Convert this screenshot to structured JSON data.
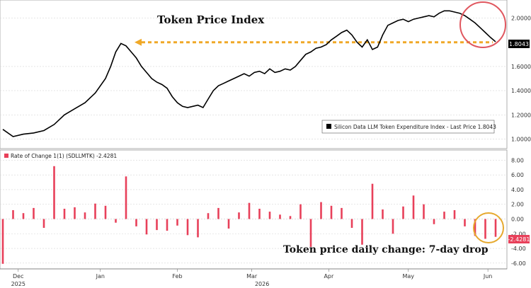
{
  "chart_data": [
    {
      "type": "line",
      "panel": "top",
      "title": "Token Price Index",
      "legend": "Silicon Data LLM Token Expenditure Index - Last Price 1.8043",
      "legend_position": "bottom-right",
      "last_price_label": "1.8043",
      "ylim": [
        0.95,
        2.12
      ],
      "y_ticks": [
        "1.0000",
        "1.2000",
        "1.4000",
        "1.6000",
        "2.0000"
      ],
      "y_tick_values": [
        1.0,
        1.2,
        1.4,
        1.6,
        2.0
      ],
      "reference_level": 1.8,
      "grid": true,
      "x_months": [
        "Dec",
        "Jan",
        "Feb",
        "Mar",
        "Apr",
        "May",
        "Jun"
      ],
      "x_years": [
        "2025",
        "2026"
      ],
      "x_note": "x = day index starting 0 at start of series (~late Nov 2025)",
      "series": [
        {
          "color": "#000000",
          "x": [
            0,
            4,
            8,
            12,
            16,
            20,
            24,
            28,
            32,
            36,
            40,
            42,
            44,
            46,
            48,
            50,
            52,
            54,
            56,
            58,
            60,
            62,
            64,
            66,
            68,
            70,
            72,
            74,
            76,
            78,
            80,
            82,
            84,
            86,
            88,
            90,
            92,
            94,
            96,
            98,
            100,
            102,
            104,
            106,
            108,
            110,
            112,
            114,
            116,
            118,
            120,
            122,
            124,
            126,
            128,
            130,
            132,
            134,
            136,
            138,
            140,
            142,
            144,
            146,
            148,
            150,
            152,
            154,
            156,
            158,
            160,
            162,
            164,
            166,
            168,
            170,
            172,
            174,
            176,
            178,
            180,
            182,
            184,
            186,
            188,
            190,
            192
          ],
          "values": [
            1.08,
            1.02,
            1.04,
            1.05,
            1.07,
            1.12,
            1.2,
            1.25,
            1.3,
            1.38,
            1.5,
            1.6,
            1.72,
            1.79,
            1.77,
            1.72,
            1.67,
            1.6,
            1.55,
            1.5,
            1.47,
            1.45,
            1.42,
            1.35,
            1.3,
            1.27,
            1.26,
            1.27,
            1.28,
            1.26,
            1.33,
            1.4,
            1.44,
            1.46,
            1.48,
            1.5,
            1.52,
            1.54,
            1.52,
            1.55,
            1.56,
            1.54,
            1.58,
            1.55,
            1.56,
            1.58,
            1.57,
            1.6,
            1.65,
            1.7,
            1.72,
            1.75,
            1.76,
            1.78,
            1.82,
            1.85,
            1.88,
            1.9,
            1.86,
            1.8,
            1.76,
            1.82,
            1.74,
            1.76,
            1.86,
            1.94,
            1.96,
            1.98,
            1.99,
            1.97,
            1.99,
            2.0,
            2.01,
            2.02,
            2.01,
            2.04,
            2.06,
            2.06,
            2.05,
            2.04,
            2.02,
            1.99,
            1.96,
            1.92,
            1.88,
            1.84,
            1.8043
          ]
        }
      ]
    },
    {
      "type": "bar",
      "panel": "bottom",
      "title": "Token price daily change: 7-day drop",
      "legend": "Rate of Change 1(1) (SDLLMTK) -2.4281",
      "legend_position": "top-left",
      "last_value_label": "-2.4281",
      "ylim": [
        -6.6,
        9.2
      ],
      "y_ticks": [
        "8.00",
        "6.00",
        "4.00",
        "2.00",
        "0.00",
        "-2.00",
        "-4.00",
        "-6.00"
      ],
      "y_tick_values": [
        8,
        6,
        4,
        2,
        0,
        -2,
        -4,
        -6
      ],
      "grid": true,
      "color": "#e8405a",
      "x_note": "x = day index; same axis as top panel",
      "x": [
        0,
        4,
        8,
        12,
        16,
        20,
        24,
        28,
        32,
        36,
        40,
        44,
        48,
        52,
        56,
        60,
        64,
        68,
        72,
        76,
        80,
        84,
        88,
        92,
        96,
        100,
        104,
        108,
        112,
        116,
        120,
        124,
        128,
        132,
        136,
        140,
        144,
        148,
        152,
        156,
        160,
        164,
        168,
        172,
        176,
        180,
        184,
        188,
        192
      ],
      "values": [
        -6.1,
        1.2,
        0.8,
        1.5,
        -1.2,
        7.2,
        1.4,
        1.6,
        0.9,
        2.1,
        1.8,
        -0.5,
        5.8,
        -1.0,
        -2.1,
        -1.5,
        -1.6,
        -0.9,
        -2.2,
        -2.5,
        0.8,
        1.5,
        -1.3,
        0.9,
        2.2,
        1.4,
        1.0,
        0.6,
        0.4,
        2.0,
        -3.8,
        2.3,
        1.8,
        1.5,
        -1.2,
        -3.5,
        4.8,
        1.3,
        -2.0,
        1.7,
        3.2,
        2.0,
        -0.7,
        1.0,
        1.2,
        -1.0,
        -2.3,
        -2.7,
        -2.4281
      ]
    }
  ]
}
